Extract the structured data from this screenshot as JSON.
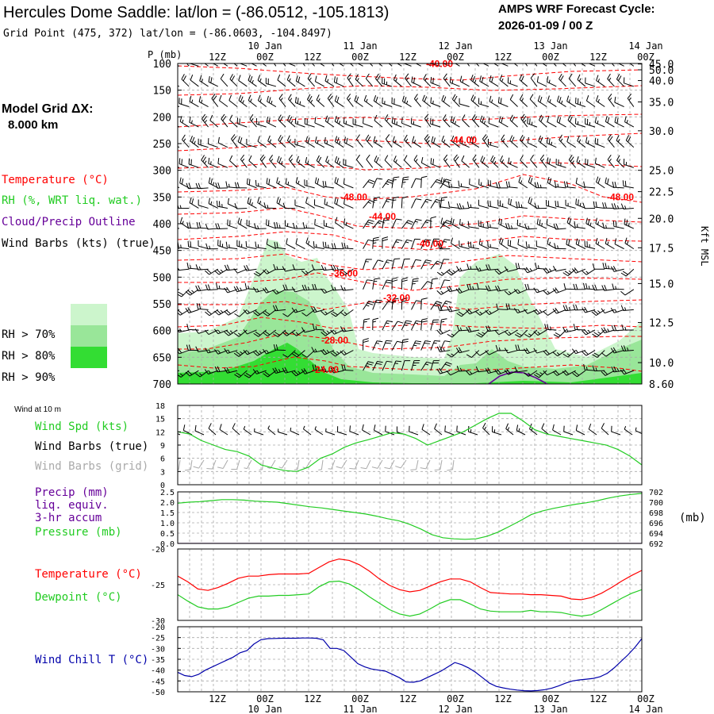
{
  "header": {
    "title": "Hercules Dome Saddle:  lat/lon = (-86.0512, -105.1813)",
    "subtitle": "Grid Point (475, 372) lat/lon = (-86.0603, -104.8497)",
    "cycle_label": "AMPS WRF Forecast Cycle:",
    "cycle_value": "2026-01-09 / 00  Z"
  },
  "left_panel": {
    "grid_label": "Model Grid ΔX:",
    "grid_value": "8.000 km",
    "temperature": "Temperature (°C)",
    "rh": "RH (%, WRT liq. wat.)",
    "cloud": "Cloud/Precip Outline",
    "barbs": "Wind Barbs (kts) (true)",
    "rh_legend": [
      {
        "label": "RH > 70%",
        "color": "#ccf5cc"
      },
      {
        "label": "RH > 80%",
        "color": "#99e699"
      },
      {
        "label": "RH > 90%",
        "color": "#33dd33"
      }
    ]
  },
  "time_axis": {
    "hours": [
      "12Z",
      "00Z",
      "12Z",
      "00Z",
      "12Z",
      "00Z",
      "12Z",
      "00Z",
      "12Z",
      "00Z"
    ],
    "dates": [
      {
        "label": "10 Jan",
        "index": 1
      },
      {
        "label": "11 Jan",
        "index": 3
      },
      {
        "label": "12 Jan",
        "index": 5
      },
      {
        "label": "13 Jan",
        "index": 7
      },
      {
        "label": "14 Jan",
        "index": 9
      }
    ]
  },
  "colors": {
    "temperature": "#ff0000",
    "rh": "#22cc22",
    "cloud": "#660099",
    "wind_chill": "#0000aa",
    "grid_barbs": "#aaaaaa",
    "speed": "#22cc22"
  },
  "chart_data": [
    {
      "type": "heatmap",
      "name": "cross-section",
      "y_axis_title": "P (mb)",
      "y_ticks": [
        100,
        150,
        200,
        250,
        300,
        350,
        400,
        450,
        500,
        550,
        600,
        650,
        700
      ],
      "ylim": [
        100,
        700
      ],
      "right_axis_title": "Kft MSL",
      "right_ticks": [
        "50.0",
        "45.0",
        "40.0",
        "35.0",
        "30.0",
        "25.0",
        "22.5",
        "20.0",
        "17.5",
        "15.0",
        "12.5",
        "10.0",
        "8.60"
      ],
      "right_tick_pressures": [
        86,
        101,
        132,
        172,
        226,
        300,
        340,
        390,
        445,
        512,
        585,
        660,
        700
      ],
      "temperature_labels": [
        {
          "text": "-40.00",
          "t": 5.5,
          "p": 101
        },
        {
          "text": "-44.00",
          "t": 6.0,
          "p": 243
        },
        {
          "text": "-48.00",
          "t": 3.7,
          "p": 350
        },
        {
          "text": "-48.00",
          "t": 9.3,
          "p": 350
        },
        {
          "text": "-44.00",
          "t": 4.3,
          "p": 387
        },
        {
          "text": "-40.00",
          "t": 5.3,
          "p": 437
        },
        {
          "text": "-36.00",
          "t": 3.5,
          "p": 493
        },
        {
          "text": "-32.00",
          "t": 4.6,
          "p": 539
        },
        {
          "text": "-28.00",
          "t": 3.3,
          "p": 618
        },
        {
          "text": "-24.00",
          "t": 3.1,
          "p": 673
        }
      ]
    },
    {
      "type": "line",
      "name": "wind-speed",
      "title": "Wind at 10 m",
      "legend": [
        "Wind Spd (kts)",
        "Wind Barbs (true)",
        "Wind Barbs (grid)"
      ],
      "ylim": [
        0,
        18
      ],
      "y_ticks": [
        0,
        3,
        6,
        9,
        12,
        15,
        18
      ],
      "x": [
        0,
        0.25,
        0.5,
        0.75,
        1.0,
        1.25,
        1.5,
        1.75,
        2.0,
        2.25,
        2.5,
        2.75,
        3.0,
        3.25,
        3.5,
        3.75,
        4.0,
        4.25,
        4.5,
        4.75,
        5.0,
        5.25,
        5.5,
        5.75,
        6.0,
        6.25,
        6.5,
        6.75,
        7.0,
        7.25,
        7.5,
        7.75,
        8.0,
        8.25,
        8.5,
        8.75,
        9.0,
        9.25,
        9.5,
        9.75
      ],
      "values": [
        12,
        11.5,
        10,
        9,
        8,
        7.5,
        6.5,
        4.5,
        3.8,
        3.2,
        3,
        4,
        6,
        7,
        8.5,
        9.5,
        10.2,
        11,
        11.8,
        11.5,
        10.5,
        9,
        10,
        11,
        12,
        13.5,
        15,
        16.2,
        16.2,
        14.5,
        12.5,
        11.5,
        11,
        10.5,
        10,
        9.5,
        9,
        8,
        6.5,
        4.5
      ]
    },
    {
      "type": "line",
      "name": "precip-pressure",
      "legend": [
        "Precip (mm)",
        "liq. equiv.",
        "3-hr accum",
        "Pressure (mb)"
      ],
      "left_ticks": [
        "0.0",
        "0.5",
        "1.0",
        "1.5",
        "2.0",
        "2.5"
      ],
      "right_ticks": [
        "692",
        "694",
        "696",
        "698",
        "700",
        "702"
      ],
      "right_axis_title": "(mb)",
      "ylim": [
        692,
        702
      ],
      "precip_values": [
        0,
        0,
        0,
        0,
        0,
        0,
        0,
        0,
        0,
        0,
        0,
        0,
        0,
        0,
        0,
        0,
        0,
        0,
        0,
        0,
        0,
        0,
        0,
        0,
        0,
        0,
        0,
        0,
        0,
        0,
        0,
        0,
        0,
        0,
        0,
        0,
        0,
        0,
        0,
        0
      ],
      "values": [
        699.8,
        700,
        700.1,
        700.3,
        700.5,
        700.5,
        700.4,
        700.2,
        700.1,
        700,
        699.7,
        699.4,
        699.1,
        698.9,
        698.6,
        698.3,
        698,
        697.7,
        697.3,
        696.8,
        696.4,
        695.7,
        694.8,
        693.7,
        693.1,
        692.9,
        692.8,
        692.9,
        693.4,
        694.2,
        695.3,
        696.4,
        697.6,
        698.3,
        698.8,
        699.2,
        699.6,
        699.9,
        700.3,
        700.8,
        701.2,
        701.5,
        701.7
      ]
    },
    {
      "type": "line",
      "name": "temperature-dewpoint",
      "legend": [
        "Temperature (°C)",
        "Dewpoint (°C)"
      ],
      "y_ticks": [
        -30,
        -25,
        -20
      ],
      "ylim": [
        -30,
        -20
      ],
      "series": [
        {
          "name": "Temperature (°C)",
          "values": [
            -23.8,
            -24.6,
            -25.6,
            -25.8,
            -25.4,
            -24.8,
            -24.1,
            -23.8,
            -23.8,
            -23.6,
            -23.5,
            -23.5,
            -23.5,
            -23.4,
            -22.6,
            -21.8,
            -21.4,
            -21.6,
            -22.2,
            -23.1,
            -24.2,
            -25.1,
            -25.7,
            -26.0,
            -25.8,
            -25.2,
            -24.6,
            -24.2,
            -24.2,
            -24.6,
            -25.4,
            -26.1,
            -26.2,
            -26.3,
            -26.3,
            -26.4,
            -26.4,
            -26.5,
            -26.6,
            -27.0,
            -27.1,
            -26.8,
            -26.2,
            -25.4,
            -24.5,
            -23.7,
            -23.0
          ]
        },
        {
          "name": "Dewpoint (°C)",
          "values": [
            -26.4,
            -27.3,
            -28.1,
            -28.4,
            -28.4,
            -28.1,
            -27.5,
            -26.9,
            -26.6,
            -26.6,
            -26.5,
            -26.5,
            -26.4,
            -26.3,
            -25.3,
            -24.6,
            -24.5,
            -24.9,
            -25.7,
            -26.7,
            -27.6,
            -28.5,
            -29.1,
            -29.4,
            -29.1,
            -28.4,
            -27.6,
            -27.1,
            -27.1,
            -27.7,
            -28.4,
            -28.7,
            -28.8,
            -28.8,
            -28.8,
            -28.6,
            -28.8,
            -28.8,
            -28.9,
            -29.2,
            -29.4,
            -29.2,
            -28.5,
            -27.7,
            -26.9,
            -26.2,
            -25.7
          ]
        }
      ]
    },
    {
      "type": "line",
      "name": "wind-chill",
      "legend": [
        "Wind Chill T (°C)"
      ],
      "y_ticks": [
        -50,
        -45,
        -40,
        -35,
        -30,
        -25,
        -20
      ],
      "ylim": [
        -50,
        -20
      ],
      "values": [
        -41,
        -42.5,
        -43,
        -42,
        -40,
        -38.5,
        -37,
        -35.5,
        -34,
        -32,
        -31,
        -28,
        -26,
        -25.5,
        -25.4,
        -25.3,
        -25.3,
        -25.3,
        -25.2,
        -25.2,
        -25.3,
        -26,
        -30,
        -30,
        -31,
        -34,
        -37,
        -38.5,
        -39.5,
        -40,
        -40.5,
        -42,
        -43.5,
        -45.5,
        -45.6,
        -45,
        -43.5,
        -42,
        -40.5,
        -38.5,
        -36.5,
        -37.5,
        -39,
        -41,
        -43.5,
        -46,
        -47.5,
        -48.2,
        -48.8,
        -49.2,
        -49.5,
        -49.6,
        -49.4,
        -49,
        -48.3,
        -47.3,
        -46,
        -45,
        -44.5,
        -44.2,
        -43.8,
        -43,
        -41.5,
        -39,
        -36,
        -33,
        -29.5,
        -25.5
      ]
    }
  ]
}
